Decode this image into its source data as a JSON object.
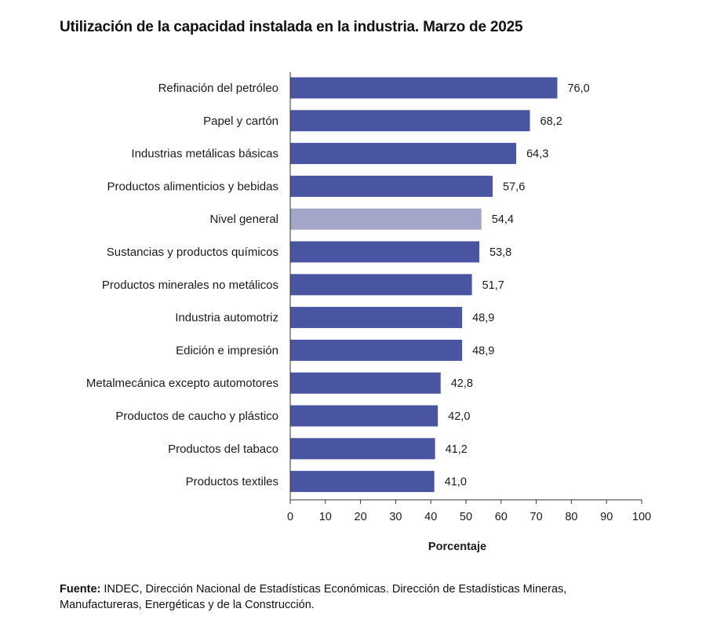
{
  "title": "Utilización de la capacidad instalada en la industria. Marzo de 2025",
  "source": {
    "prefix": "Fuente:",
    "text": " INDEC, Dirección Nacional de Estadísticas Económicas. Dirección de Estadísticas Mineras, Manufactureras, Energéticas y de la Construcción."
  },
  "colors": {
    "bar": "#4a55a2",
    "highlight": "#a3a6c8"
  },
  "chart_data": {
    "type": "bar",
    "orientation": "horizontal",
    "title": "Utilización de la capacidad instalada en la industria. Marzo de 2025",
    "xlabel": "Porcentaje",
    "ylabel": "",
    "xlim": [
      0,
      100
    ],
    "ticks": [
      0,
      10,
      20,
      30,
      40,
      50,
      60,
      70,
      80,
      90,
      100
    ],
    "categories": [
      "Refinación del petróleo",
      "Papel y cartón",
      "Industrias metálicas básicas",
      "Productos alimenticios y bebidas",
      "Nivel general",
      "Sustancias y productos químicos",
      "Productos minerales no metálicos",
      "Industria automotriz",
      "Edición e impresión",
      "Metalmecánica excepto automotores",
      "Productos de caucho y plástico",
      "Productos del tabaco",
      "Productos textiles"
    ],
    "values": [
      76.0,
      68.2,
      64.3,
      57.6,
      54.4,
      53.8,
      51.7,
      48.9,
      48.9,
      42.8,
      42.0,
      41.2,
      41.0
    ],
    "value_labels": [
      "76,0",
      "68,2",
      "64,3",
      "57,6",
      "54,4",
      "53,8",
      "51,7",
      "48,9",
      "48,9",
      "42,8",
      "42,0",
      "41,2",
      "41,0"
    ],
    "highlight_category": "Nivel general",
    "grid": false
  }
}
